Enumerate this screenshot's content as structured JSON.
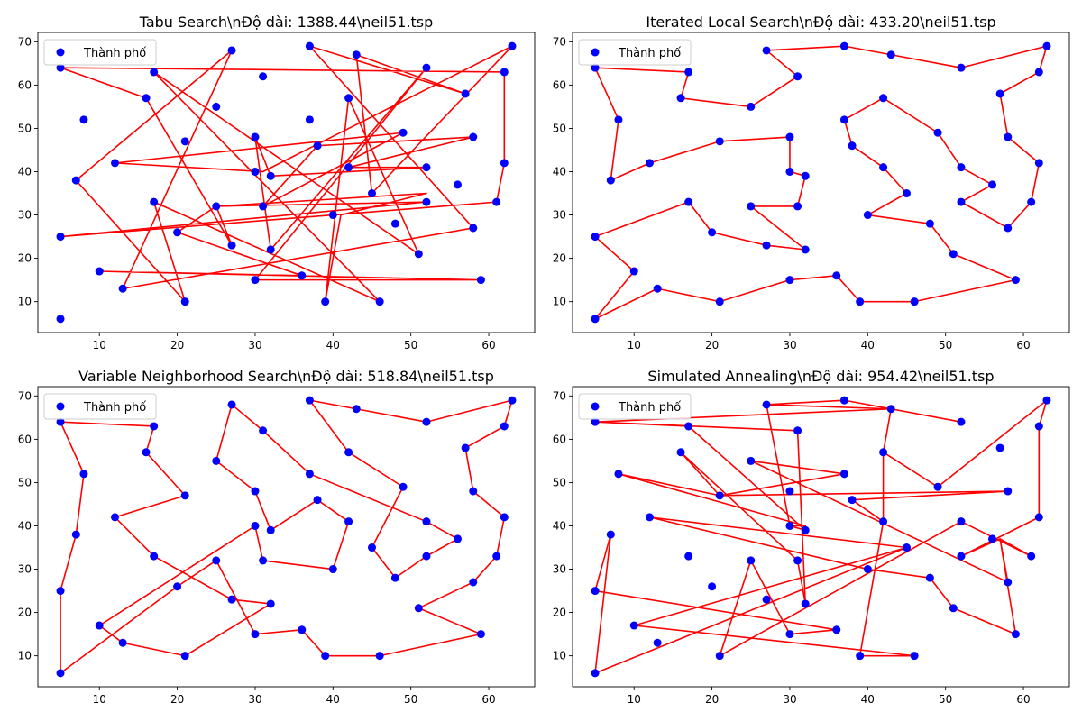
{
  "colors": {
    "route": "#ff0000",
    "city": "#0000ff",
    "axis": "#000000",
    "background": "#ffffff",
    "legend_border": "#cccccc"
  },
  "legend_label": "Thành phố",
  "cities": [
    [
      37,
      52
    ],
    [
      49,
      49
    ],
    [
      52,
      64
    ],
    [
      20,
      26
    ],
    [
      40,
      30
    ],
    [
      21,
      47
    ],
    [
      17,
      63
    ],
    [
      31,
      62
    ],
    [
      52,
      33
    ],
    [
      51,
      21
    ],
    [
      42,
      41
    ],
    [
      31,
      32
    ],
    [
      5,
      25
    ],
    [
      12,
      42
    ],
    [
      36,
      16
    ],
    [
      52,
      41
    ],
    [
      27,
      23
    ],
    [
      17,
      33
    ],
    [
      13,
      13
    ],
    [
      57,
      58
    ],
    [
      62,
      42
    ],
    [
      42,
      57
    ],
    [
      16,
      57
    ],
    [
      8,
      52
    ],
    [
      7,
      38
    ],
    [
      27,
      68
    ],
    [
      30,
      48
    ],
    [
      43,
      67
    ],
    [
      58,
      48
    ],
    [
      58,
      27
    ],
    [
      37,
      69
    ],
    [
      38,
      46
    ],
    [
      46,
      10
    ],
    [
      61,
      33
    ],
    [
      62,
      63
    ],
    [
      63,
      69
    ],
    [
      32,
      22
    ],
    [
      45,
      35
    ],
    [
      59,
      15
    ],
    [
      5,
      6
    ],
    [
      10,
      17
    ],
    [
      21,
      10
    ],
    [
      5,
      64
    ],
    [
      30,
      15
    ],
    [
      39,
      10
    ],
    [
      32,
      39
    ],
    [
      25,
      32
    ],
    [
      25,
      55
    ],
    [
      48,
      28
    ],
    [
      56,
      37
    ],
    [
      30,
      40
    ]
  ],
  "chart_data": [
    {
      "type": "scatter",
      "title": "Tabu Search\\nĐộ dài: 1388.44\\neil51.tsp",
      "xlim": [
        2.1,
        65.9
      ],
      "ylim": [
        2.85,
        72.15
      ],
      "xticks": [
        10,
        20,
        30,
        40,
        50,
        60
      ],
      "yticks": [
        10,
        20,
        30,
        40,
        50,
        60,
        70
      ],
      "legend": "top-left",
      "tour": [
        [
          5,
          64
        ],
        [
          62,
          63
        ],
        [
          62,
          42
        ],
        [
          61,
          33
        ],
        [
          5,
          25
        ],
        [
          52,
          33
        ],
        [
          25,
          32
        ],
        [
          52,
          35
        ],
        [
          41,
          30
        ],
        [
          39,
          10
        ],
        [
          42,
          57
        ],
        [
          51,
          21
        ],
        [
          17,
          63
        ],
        [
          46,
          10
        ],
        [
          17,
          33
        ],
        [
          21,
          10
        ],
        [
          7,
          38
        ],
        [
          27,
          68
        ],
        [
          13,
          13
        ],
        [
          58,
          27
        ],
        [
          37,
          69
        ],
        [
          57,
          58
        ],
        [
          43,
          67
        ],
        [
          45,
          35
        ],
        [
          63,
          69
        ],
        [
          31,
          40
        ],
        [
          12,
          42
        ],
        [
          49,
          49
        ],
        [
          31,
          32
        ],
        [
          38,
          46
        ],
        [
          58,
          48
        ],
        [
          42,
          41
        ],
        [
          52,
          41
        ],
        [
          32,
          39
        ],
        [
          30,
          48
        ],
        [
          32,
          22
        ],
        [
          52,
          64
        ],
        [
          30,
          15
        ],
        [
          59,
          15
        ],
        [
          10,
          17
        ],
        [
          36,
          16
        ],
        [
          20,
          26
        ],
        [
          25,
          32
        ],
        [
          27,
          23
        ],
        [
          16,
          57
        ],
        [
          5,
          64
        ]
      ]
    },
    {
      "type": "scatter",
      "title": "Iterated Local Search\\nĐộ dài: 433.20\\neil51.tsp",
      "xlim": [
        2.1,
        65.9
      ],
      "ylim": [
        2.85,
        72.15
      ],
      "xticks": [
        10,
        20,
        30,
        40,
        50,
        60
      ],
      "yticks": [
        10,
        20,
        30,
        40,
        50,
        60,
        70
      ],
      "legend": "top-left",
      "tour": [
        [
          5,
          64
        ],
        [
          17,
          63
        ],
        [
          16,
          57
        ],
        [
          25,
          55
        ],
        [
          31,
          62
        ],
        [
          27,
          68
        ],
        [
          37,
          69
        ],
        [
          43,
          67
        ],
        [
          52,
          64
        ],
        [
          63,
          69
        ],
        [
          62,
          63
        ],
        [
          57,
          58
        ],
        [
          58,
          48
        ],
        [
          62,
          42
        ],
        [
          61,
          33
        ],
        [
          58,
          27
        ],
        [
          52,
          33
        ],
        [
          56,
          37
        ],
        [
          52,
          41
        ],
        [
          49,
          49
        ],
        [
          42,
          57
        ],
        [
          37,
          52
        ],
        [
          38,
          46
        ],
        [
          42,
          41
        ],
        [
          45,
          35
        ],
        [
          40,
          30
        ],
        [
          48,
          28
        ],
        [
          51,
          21
        ],
        [
          59,
          15
        ],
        [
          46,
          10
        ],
        [
          39,
          10
        ],
        [
          36,
          16
        ],
        [
          30,
          15
        ],
        [
          21,
          10
        ],
        [
          13,
          13
        ],
        [
          5,
          6
        ],
        [
          10,
          17
        ],
        [
          5,
          25
        ],
        [
          17,
          33
        ],
        [
          20,
          26
        ],
        [
          27,
          23
        ],
        [
          32,
          22
        ],
        [
          25,
          32
        ],
        [
          31,
          32
        ],
        [
          32,
          39
        ],
        [
          30,
          40
        ],
        [
          30,
          48
        ],
        [
          21,
          47
        ],
        [
          12,
          42
        ],
        [
          7,
          38
        ],
        [
          8,
          52
        ],
        [
          5,
          64
        ]
      ]
    },
    {
      "type": "scatter",
      "title": "Variable Neighborhood Search\\nĐộ dài: 518.84\\neil51.tsp",
      "xlim": [
        2.1,
        65.9
      ],
      "ylim": [
        2.85,
        72.15
      ],
      "xticks": [
        10,
        20,
        30,
        40,
        50,
        60
      ],
      "yticks": [
        10,
        20,
        30,
        40,
        50,
        60,
        70
      ],
      "legend": "top-left",
      "tour": [
        [
          5,
          64
        ],
        [
          17,
          63
        ],
        [
          16,
          57
        ],
        [
          21,
          47
        ],
        [
          12,
          42
        ],
        [
          17,
          33
        ],
        [
          27,
          23
        ],
        [
          32,
          22
        ],
        [
          21,
          10
        ],
        [
          13,
          13
        ],
        [
          10,
          17
        ],
        [
          30,
          40
        ],
        [
          31,
          32
        ],
        [
          40,
          30
        ],
        [
          42,
          41
        ],
        [
          38,
          46
        ],
        [
          32,
          39
        ],
        [
          30,
          48
        ],
        [
          25,
          55
        ],
        [
          27,
          68
        ],
        [
          31,
          62
        ],
        [
          37,
          52
        ],
        [
          52,
          41
        ],
        [
          56,
          37
        ],
        [
          52,
          33
        ],
        [
          48,
          28
        ],
        [
          45,
          35
        ],
        [
          49,
          49
        ],
        [
          42,
          57
        ],
        [
          37,
          69
        ],
        [
          43,
          67
        ],
        [
          52,
          64
        ],
        [
          63,
          69
        ],
        [
          62,
          63
        ],
        [
          57,
          58
        ],
        [
          58,
          48
        ],
        [
          62,
          42
        ],
        [
          61,
          33
        ],
        [
          58,
          27
        ],
        [
          51,
          21
        ],
        [
          59,
          15
        ],
        [
          46,
          10
        ],
        [
          39,
          10
        ],
        [
          36,
          16
        ],
        [
          30,
          15
        ],
        [
          25,
          32
        ],
        [
          20,
          26
        ],
        [
          5,
          6
        ],
        [
          5,
          25
        ],
        [
          7,
          38
        ],
        [
          8,
          52
        ],
        [
          5,
          64
        ]
      ]
    },
    {
      "type": "scatter",
      "title": "Simulated Annealing\\nĐộ dài: 954.42\\neil51.tsp",
      "xlim": [
        2.1,
        65.9
      ],
      "ylim": [
        2.85,
        72.15
      ],
      "xticks": [
        10,
        20,
        30,
        40,
        50,
        60
      ],
      "yticks": [
        10,
        20,
        30,
        40,
        50,
        60,
        70
      ],
      "legend": "top-left",
      "tour": [
        [
          5,
          64
        ],
        [
          31,
          62
        ],
        [
          32,
          22
        ],
        [
          31,
          32
        ],
        [
          16,
          57
        ],
        [
          21,
          47
        ],
        [
          58,
          48
        ],
        [
          38,
          46
        ],
        [
          42,
          41
        ],
        [
          42,
          57
        ],
        [
          43,
          67
        ],
        [
          52,
          64
        ],
        [
          37,
          69
        ],
        [
          27,
          68
        ],
        [
          30,
          40
        ],
        [
          32,
          39
        ],
        [
          17,
          63
        ],
        [
          5,
          64
        ],
        [
          43,
          67
        ],
        [
          27,
          68
        ],
        [
          30,
          40
        ],
        [
          32,
          40
        ],
        [
          8,
          52
        ],
        [
          21,
          47
        ],
        [
          37,
          52
        ],
        [
          25,
          55
        ],
        [
          58,
          27
        ],
        [
          57,
          37
        ],
        [
          52,
          33
        ],
        [
          62,
          42
        ],
        [
          62,
          63
        ],
        [
          63,
          69
        ],
        [
          49,
          49
        ],
        [
          42,
          57
        ],
        [
          42,
          41
        ],
        [
          39,
          10
        ],
        [
          46,
          10
        ],
        [
          10,
          17
        ],
        [
          45,
          35
        ],
        [
          5,
          6
        ],
        [
          7,
          38
        ],
        [
          5,
          25
        ],
        [
          36,
          16
        ],
        [
          30,
          15
        ],
        [
          25,
          32
        ],
        [
          21,
          10
        ],
        [
          52,
          41
        ],
        [
          61,
          33
        ],
        [
          57,
          37
        ],
        [
          59,
          15
        ],
        [
          51,
          21
        ],
        [
          48,
          28
        ],
        [
          40,
          30
        ],
        [
          12,
          42
        ],
        [
          45,
          35
        ]
      ]
    }
  ]
}
